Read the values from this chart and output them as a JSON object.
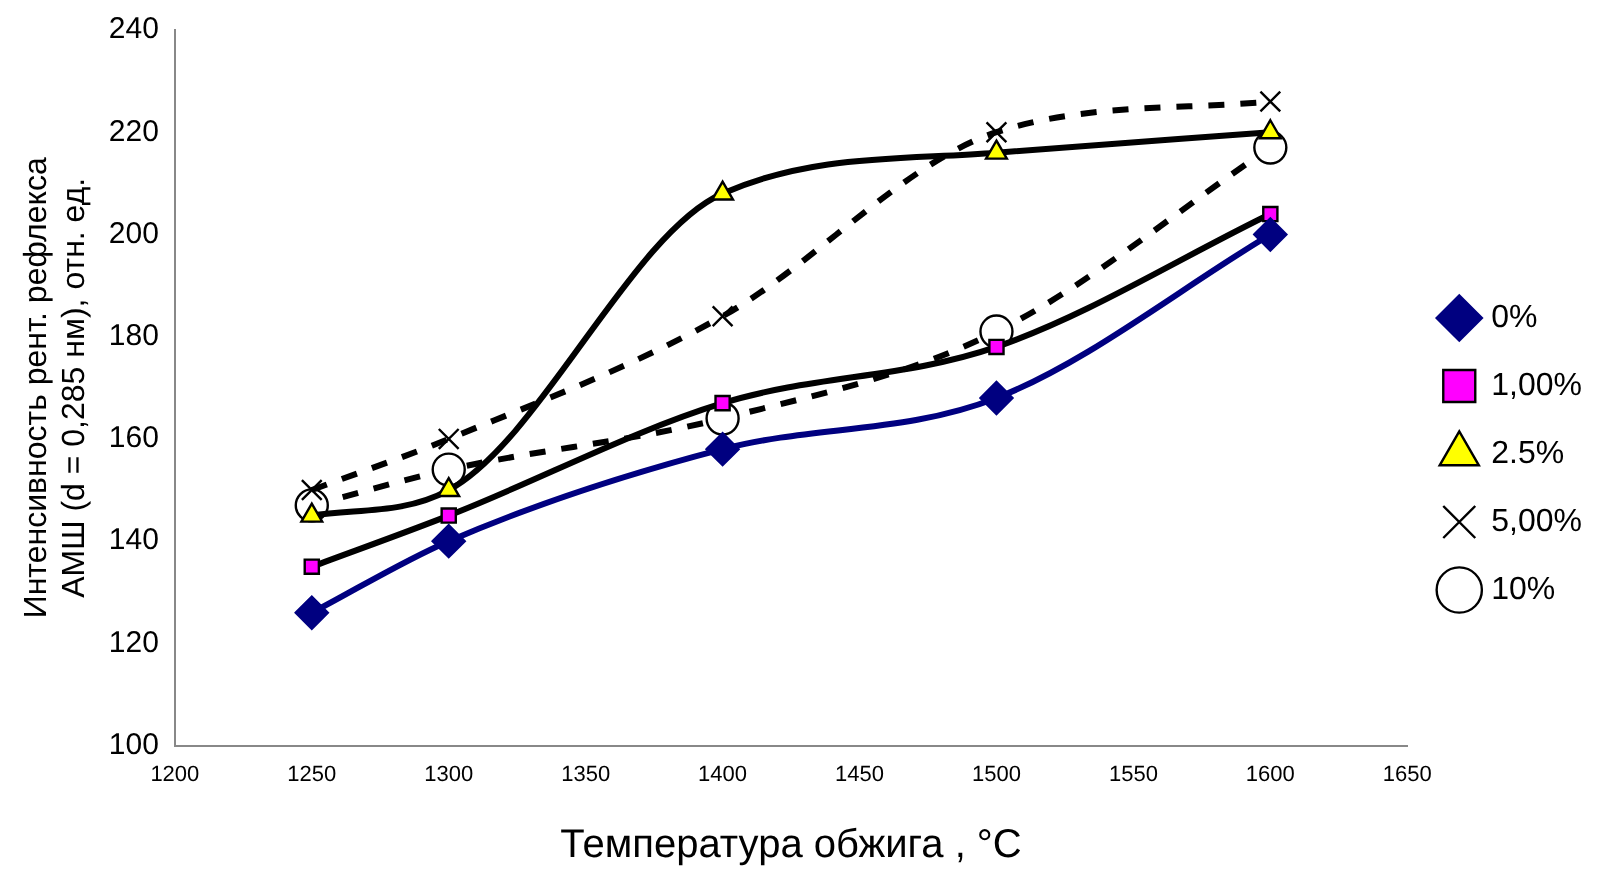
{
  "chart_data": {
    "type": "line",
    "xlabel": "Температура обжига , °C",
    "ylabel": "Интенсивность рент. рефлекса\nАМШ (d = 0,285 нм), отн. ед.",
    "x": [
      1250,
      1300,
      1400,
      1500,
      1600
    ],
    "xlim": [
      1200,
      1650
    ],
    "xticks": [
      1200,
      1250,
      1300,
      1350,
      1400,
      1450,
      1500,
      1550,
      1600,
      1650
    ],
    "ylim": [
      100,
      240
    ],
    "yticks": [
      100,
      120,
      140,
      160,
      180,
      200,
      220,
      240
    ],
    "grid": false,
    "legend": "right",
    "series": [
      {
        "name": "0%",
        "color": "#000080",
        "colors": [
          "#000080",
          "#000080",
          "#000080",
          "#000080",
          "#000080"
        ],
        "marker": "diamond",
        "line_style": "solid",
        "values": [
          126,
          140,
          158,
          168,
          200
        ]
      },
      {
        "name": "1,00%",
        "color": "#000000",
        "colors": [
          "#ff00ff",
          "#ff00ff",
          "#ff00ff",
          "#ff00ff",
          "#ff00ff"
        ],
        "marker": "square",
        "line_style": "solid",
        "values": [
          135,
          145,
          167,
          178,
          204
        ]
      },
      {
        "name": "2.5%",
        "color": "#000000",
        "colors": [
          "#ffff00",
          "#ffff00",
          "#ffff00",
          "#ffff00",
          "#ffff00"
        ],
        "marker": "triangle",
        "line_style": "solid",
        "values": [
          145,
          150,
          208,
          216,
          220
        ]
      },
      {
        "name": "5,00%",
        "color": "#000000",
        "colors": [
          "#ffffff",
          "#ffffff",
          "#ffffff",
          "#ffffff",
          "#ffffff"
        ],
        "marker": "cross",
        "line_style": "dashed",
        "values": [
          150,
          160,
          184,
          220,
          226
        ]
      },
      {
        "name": "10%",
        "color": "#000000",
        "colors": [
          "#ffffff",
          "#ffffff",
          "#ffffff",
          "#ffffff",
          "#ffffff"
        ],
        "marker": "circle",
        "line_style": "dashed",
        "values": [
          147,
          154,
          164,
          181,
          217
        ]
      }
    ]
  }
}
